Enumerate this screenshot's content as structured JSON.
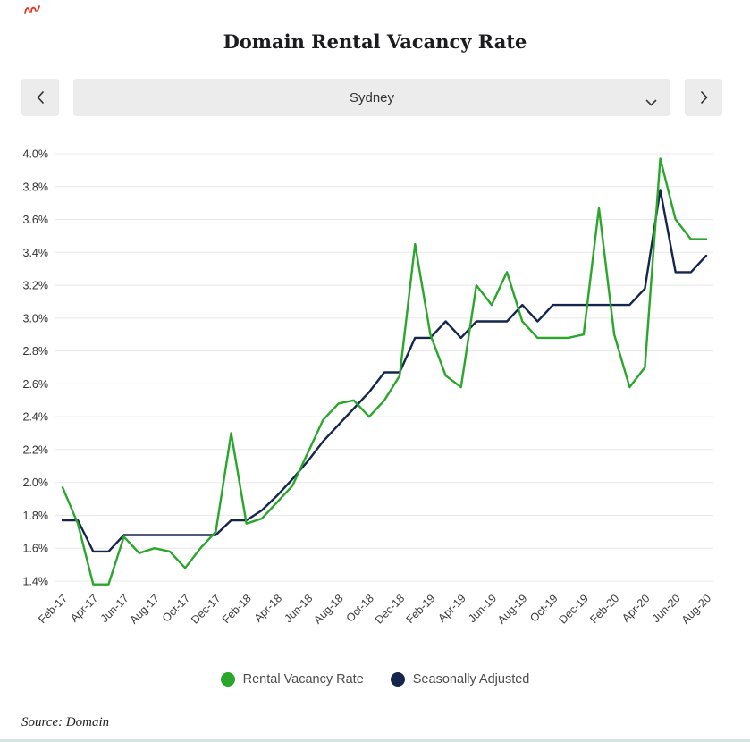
{
  "page": {
    "title": "Domain Rental Vacancy Rate",
    "source_note": "Source: Domain"
  },
  "decor": {
    "corner_mark_color": "#e2351f"
  },
  "controls": {
    "selected_city": "Sydney"
  },
  "legend": [
    {
      "label": "Rental Vacancy Rate",
      "color": "#2aa62b"
    },
    {
      "label": "Seasonally Adjusted",
      "color": "#16254c"
    }
  ],
  "chart_data": {
    "type": "line",
    "title": "Domain Rental Vacancy Rate",
    "x": [
      "Feb-17",
      "Mar-17",
      "Apr-17",
      "May-17",
      "Jun-17",
      "Jul-17",
      "Aug-17",
      "Sep-17",
      "Oct-17",
      "Nov-17",
      "Dec-17",
      "Jan-18",
      "Feb-18",
      "Mar-18",
      "Apr-18",
      "May-18",
      "Jun-18",
      "Jul-18",
      "Aug-18",
      "Sep-18",
      "Oct-18",
      "Nov-18",
      "Dec-18",
      "Jan-19",
      "Feb-19",
      "Mar-19",
      "Apr-19",
      "May-19",
      "Jun-19",
      "Jul-19",
      "Aug-19",
      "Sep-19",
      "Oct-19",
      "Nov-19",
      "Dec-19",
      "Jan-20",
      "Feb-20",
      "Mar-20",
      "Apr-20",
      "May-20",
      "Jun-20",
      "Jul-20",
      "Aug-20"
    ],
    "x_tick_every": 2,
    "y_ticks": [
      1.4,
      1.6,
      1.8,
      2.0,
      2.2,
      2.4,
      2.6,
      2.8,
      3.0,
      3.2,
      3.4,
      3.6,
      3.8,
      4.0
    ],
    "y_tick_suffix": "%",
    "grid": true,
    "legend_position": "bottom",
    "series": [
      {
        "name": "Rental Vacancy Rate",
        "color": "#2aa62b",
        "values": [
          1.97,
          1.75,
          1.38,
          1.38,
          1.67,
          1.57,
          1.6,
          1.58,
          1.48,
          1.6,
          1.7,
          2.3,
          1.75,
          1.78,
          1.88,
          1.98,
          2.18,
          2.38,
          2.48,
          2.5,
          2.4,
          2.5,
          2.65,
          3.45,
          2.9,
          2.65,
          2.58,
          3.2,
          3.08,
          3.28,
          2.98,
          2.88,
          2.88,
          2.88,
          2.9,
          3.67,
          2.9,
          2.58,
          2.7,
          3.97,
          3.6,
          3.48,
          3.48
        ]
      },
      {
        "name": "Seasonally Adjusted",
        "color": "#16254c",
        "values": [
          1.77,
          1.77,
          1.58,
          1.58,
          1.68,
          1.68,
          1.68,
          1.68,
          1.68,
          1.68,
          1.68,
          1.77,
          1.77,
          1.83,
          1.92,
          2.02,
          2.13,
          2.25,
          2.35,
          2.45,
          2.55,
          2.67,
          2.67,
          2.88,
          2.88,
          2.98,
          2.88,
          2.98,
          2.98,
          2.98,
          3.08,
          2.98,
          3.08,
          3.08,
          3.08,
          3.08,
          3.08,
          3.08,
          3.18,
          3.78,
          3.28,
          3.28,
          3.38
        ]
      }
    ]
  }
}
